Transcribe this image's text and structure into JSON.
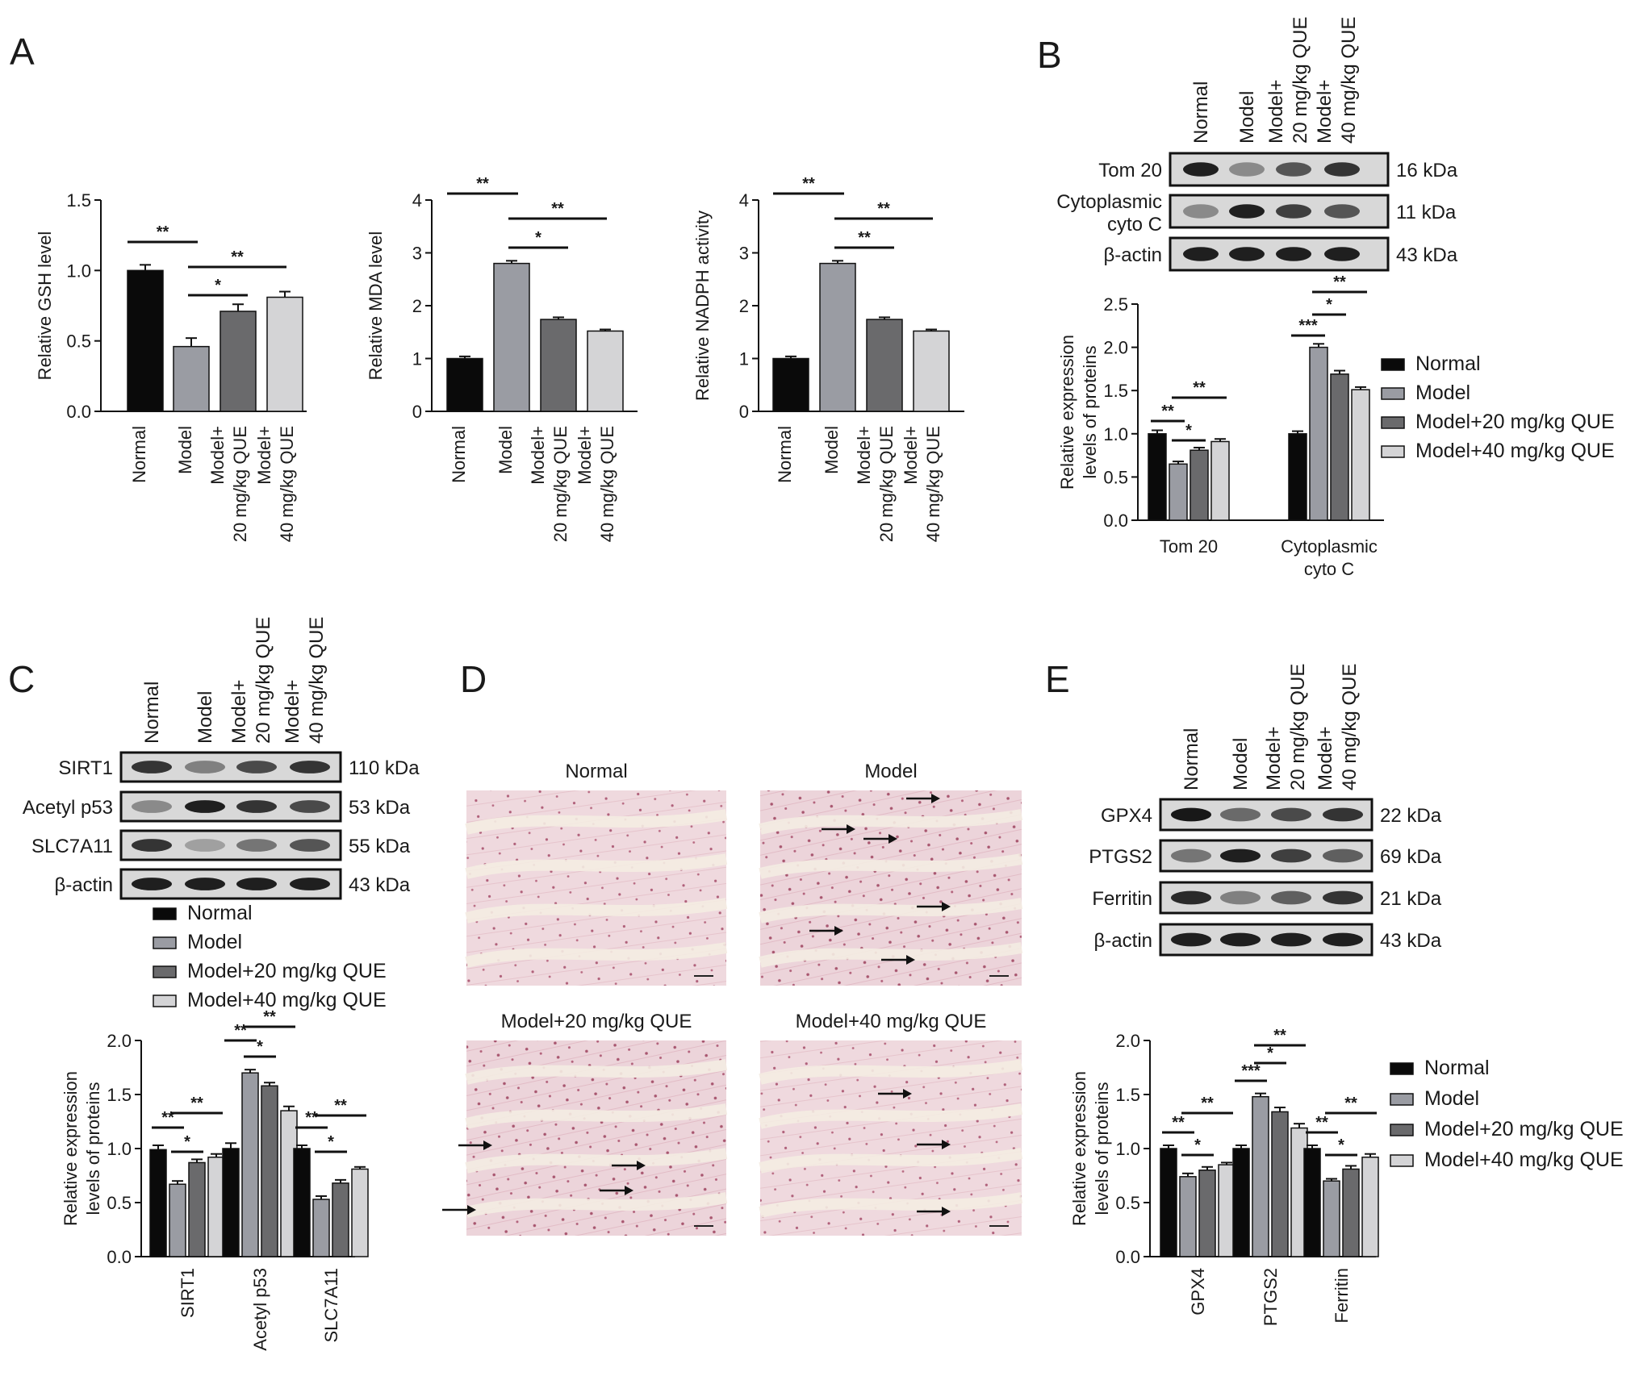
{
  "panels": {
    "A": "A",
    "B": "B",
    "C": "C",
    "D": "D",
    "E": "E"
  },
  "colors": {
    "Normal": "#0a0a0a",
    "Model": "#9a9ca3",
    "Model+20 mg/kg QUE": "#6a6a6c",
    "Model+40 mg/kg QUE": "#d4d4d6"
  },
  "groups": [
    "Normal",
    "Model",
    "Model+20 mg/kg QUE",
    "Model+40 mg/kg QUE"
  ],
  "lane_labels": [
    [
      "Normal"
    ],
    [
      "Model"
    ],
    [
      "Model+",
      "20 mg/kg QUE"
    ],
    [
      "Model+",
      "40 mg/kg QUE"
    ]
  ],
  "chart_data": [
    {
      "id": "A1",
      "type": "bar",
      "categories": [
        "Normal",
        "Model",
        "Model+ 20 mg/kg QUE",
        "Model+ 40 mg/kg QUE"
      ],
      "values": [
        1.0,
        0.46,
        0.71,
        0.81
      ],
      "errors": [
        0.04,
        0.06,
        0.05,
        0.04
      ],
      "ylabel": "Relative GSH level",
      "ylim": [
        0,
        1.5
      ],
      "yticks": [
        "0.0",
        "0.5",
        "1.0",
        "1.5"
      ],
      "significance": [
        [
          "Normal",
          "Model",
          "**"
        ],
        [
          "Model",
          "Model+ 20 mg/kg QUE",
          "*"
        ],
        [
          "Model",
          "Model+ 40 mg/kg QUE",
          "**"
        ]
      ]
    },
    {
      "id": "A2",
      "type": "bar",
      "categories": [
        "Normal",
        "Model",
        "Model+ 20 mg/kg QUE",
        "Model+ 40 mg/kg QUE"
      ],
      "values": [
        1.0,
        2.8,
        1.74,
        1.52
      ],
      "errors": [
        0.04,
        0.05,
        0.04,
        0.03
      ],
      "ylabel": "Relative MDA level",
      "ylim": [
        0,
        4
      ],
      "yticks": [
        "0",
        "1",
        "2",
        "3",
        "4"
      ],
      "significance": [
        [
          "Normal",
          "Model",
          "**"
        ],
        [
          "Model",
          "Model+ 20 mg/kg QUE",
          "*"
        ],
        [
          "Model",
          "Model+ 40 mg/kg QUE",
          "**"
        ]
      ]
    },
    {
      "id": "A3",
      "type": "bar",
      "categories": [
        "Normal",
        "Model",
        "Model+ 20 mg/kg QUE",
        "Model+ 40 mg/kg QUE"
      ],
      "values": [
        1.0,
        2.8,
        1.74,
        1.52
      ],
      "errors": [
        0.04,
        0.05,
        0.04,
        0.03
      ],
      "ylabel": "Relative NADPH activity",
      "ylim": [
        0,
        4
      ],
      "yticks": [
        "0",
        "1",
        "2",
        "3",
        "4"
      ],
      "significance": [
        [
          "Normal",
          "Model",
          "**"
        ],
        [
          "Model",
          "Model+ 20 mg/kg QUE",
          "**"
        ],
        [
          "Model",
          "Model+ 40 mg/kg QUE",
          "**"
        ]
      ]
    },
    {
      "id": "B",
      "type": "bar",
      "categories": [
        "Tom 20",
        "Cytoplasmic cyto C"
      ],
      "series": [
        {
          "name": "Normal",
          "values": [
            1.0,
            1.0
          ],
          "errors": [
            0.04,
            0.03
          ]
        },
        {
          "name": "Model",
          "values": [
            0.65,
            2.0
          ],
          "errors": [
            0.03,
            0.04
          ]
        },
        {
          "name": "Model+20 mg/kg QUE",
          "values": [
            0.81,
            1.69
          ],
          "errors": [
            0.03,
            0.04
          ]
        },
        {
          "name": "Model+40 mg/kg QUE",
          "values": [
            0.91,
            1.51
          ],
          "errors": [
            0.03,
            0.03
          ]
        }
      ],
      "ylabel": "Relative expression levels of proteins",
      "ylim": [
        0,
        2.5
      ],
      "yticks": [
        "0.0",
        "0.5",
        "1.0",
        "1.5",
        "2.0",
        "2.5"
      ],
      "legend": "right"
    },
    {
      "id": "C",
      "type": "bar",
      "categories": [
        "SIRT1",
        "Acetyl p53",
        "SLC7A11"
      ],
      "series": [
        {
          "name": "Normal",
          "values": [
            0.99,
            1.0,
            1.0
          ],
          "errors": [
            0.04,
            0.05,
            0.03
          ]
        },
        {
          "name": "Model",
          "values": [
            0.67,
            1.7,
            0.53
          ],
          "errors": [
            0.03,
            0.03,
            0.03
          ]
        },
        {
          "name": "Model+20 mg/kg QUE",
          "values": [
            0.87,
            1.58,
            0.68
          ],
          "errors": [
            0.03,
            0.03,
            0.03
          ]
        },
        {
          "name": "Model+40 mg/kg QUE",
          "values": [
            0.92,
            1.35,
            0.81
          ],
          "errors": [
            0.03,
            0.04,
            0.02
          ]
        }
      ],
      "ylabel": "Relative expression levels of proteins",
      "ylim": [
        0,
        2.0
      ],
      "yticks": [
        "0.0",
        "0.5",
        "1.0",
        "1.5",
        "2.0"
      ],
      "legend": "top"
    },
    {
      "id": "E",
      "type": "bar",
      "categories": [
        "GPX4",
        "PTGS2",
        "Ferritin"
      ],
      "series": [
        {
          "name": "Normal",
          "values": [
            1.0,
            1.0,
            1.0
          ],
          "errors": [
            0.03,
            0.03,
            0.03
          ]
        },
        {
          "name": "Model",
          "values": [
            0.74,
            1.48,
            0.7
          ],
          "errors": [
            0.03,
            0.03,
            0.02
          ]
        },
        {
          "name": "Model+20 mg/kg QUE",
          "values": [
            0.8,
            1.34,
            0.81
          ],
          "errors": [
            0.03,
            0.04,
            0.03
          ]
        },
        {
          "name": "Model+40 mg/kg QUE",
          "values": [
            0.85,
            1.19,
            0.92
          ],
          "errors": [
            0.02,
            0.04,
            0.03
          ]
        }
      ],
      "ylabel": "Relative expression levels of proteins",
      "ylim": [
        0,
        2.0
      ],
      "yticks": [
        "0.0",
        "0.5",
        "1.0",
        "1.5",
        "2.0"
      ],
      "legend": "right"
    }
  ],
  "blots": {
    "B": [
      {
        "label": [
          "Tom 20"
        ],
        "kda": "16 kDa",
        "intensity": [
          0.95,
          0.45,
          0.7,
          0.85
        ]
      },
      {
        "label": [
          "Cytoplasmic",
          "cyto C"
        ],
        "kda": "11 kDa",
        "intensity": [
          0.45,
          0.95,
          0.8,
          0.7
        ]
      },
      {
        "label": [
          "β-actin"
        ],
        "kda": "43 kDa",
        "intensity": [
          0.95,
          0.95,
          0.95,
          0.95
        ]
      }
    ],
    "C": [
      {
        "label": [
          "SIRT1"
        ],
        "kda": "110 kDa",
        "intensity": [
          0.85,
          0.5,
          0.75,
          0.85
        ]
      },
      {
        "label": [
          "Acetyl p53"
        ],
        "kda": "53 kDa",
        "intensity": [
          0.45,
          0.95,
          0.85,
          0.75
        ]
      },
      {
        "label": [
          "SLC7A11"
        ],
        "kda": "55 kDa",
        "intensity": [
          0.85,
          0.35,
          0.55,
          0.7
        ]
      },
      {
        "label": [
          "β-actin"
        ],
        "kda": "43 kDa",
        "intensity": [
          0.95,
          0.95,
          0.95,
          0.95
        ]
      }
    ],
    "E": [
      {
        "label": [
          "GPX4"
        ],
        "kda": "22 kDa",
        "intensity": [
          0.98,
          0.6,
          0.75,
          0.85
        ]
      },
      {
        "label": [
          "PTGS2"
        ],
        "kda": "69 kDa",
        "intensity": [
          0.55,
          0.95,
          0.8,
          0.65
        ]
      },
      {
        "label": [
          "Ferritin"
        ],
        "kda": "21 kDa",
        "intensity": [
          0.9,
          0.5,
          0.65,
          0.85
        ]
      },
      {
        "label": [
          "β-actin"
        ],
        "kda": "43 kDa",
        "intensity": [
          0.95,
          0.95,
          0.95,
          0.95
        ]
      }
    ]
  },
  "histology": {
    "titles": [
      "Normal",
      "Model",
      "Model+20 mg/kg QUE",
      "Model+40 mg/kg QUE"
    ]
  }
}
